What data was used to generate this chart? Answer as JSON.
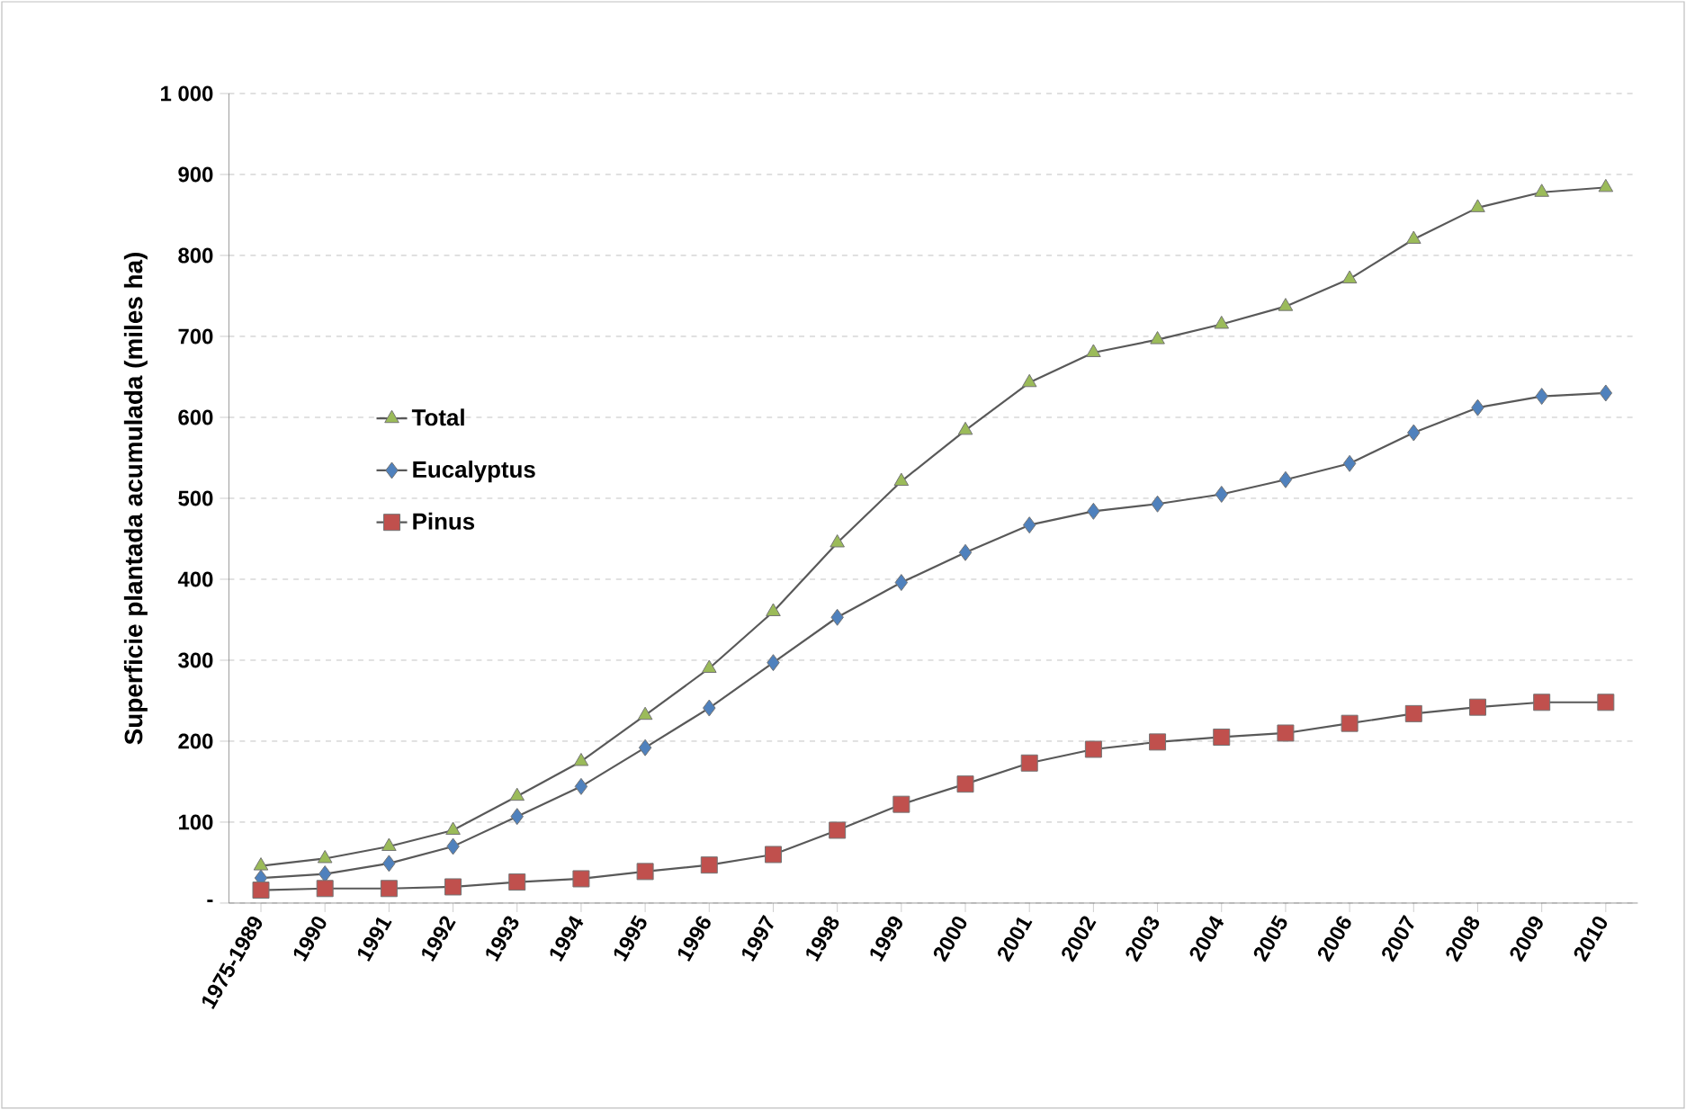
{
  "chart_data": {
    "type": "line",
    "ylabel": "Superficie plantada acumulada (miles ha)",
    "categories": [
      "1975-1989",
      "1990",
      "1991",
      "1992",
      "1993",
      "1994",
      "1995",
      "1996",
      "1997",
      "1998",
      "1999",
      "2000",
      "2001",
      "2002",
      "2003",
      "2004",
      "2005",
      "2006",
      "2007",
      "2008",
      "2009",
      "2010"
    ],
    "series": [
      {
        "name": "Total",
        "color": "#9bbb59",
        "marker": "triangle",
        "values": [
          46,
          55,
          70,
          90,
          132,
          175,
          232,
          290,
          360,
          445,
          521,
          584,
          643,
          680,
          696,
          715,
          737,
          771,
          820,
          859,
          878,
          884
        ]
      },
      {
        "name": "Eucalyptus",
        "color": "#4f81bd",
        "marker": "diamond",
        "values": [
          31,
          36,
          49,
          70,
          107,
          144,
          192,
          241,
          297,
          353,
          396,
          433,
          467,
          484,
          493,
          505,
          523,
          543,
          581,
          612,
          626,
          630
        ]
      },
      {
        "name": "Pinus",
        "color": "#c0504d",
        "marker": "square",
        "values": [
          16,
          18,
          18,
          20,
          26,
          30,
          39,
          47,
          60,
          90,
          122,
          147,
          173,
          190,
          199,
          205,
          210,
          222,
          234,
          242,
          248,
          248
        ]
      }
    ],
    "ylim": [
      0,
      1000
    ],
    "yticks": [
      {
        "value": 0,
        "label": "-"
      },
      100,
      200,
      300,
      400,
      500,
      600,
      700,
      800,
      900,
      {
        "value": 1000,
        "label": "1 000"
      }
    ],
    "grid": "y",
    "legend": "left",
    "line_style": "solid"
  }
}
